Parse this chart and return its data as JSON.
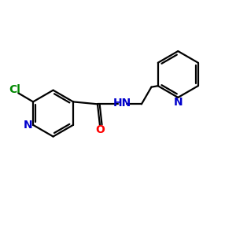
{
  "bg_color": "#ffffff",
  "bond_color": "#000000",
  "N_color": "#0000cc",
  "O_color": "#ff0000",
  "Cl_color": "#008800",
  "lw": 1.6,
  "figsize": [
    3.0,
    3.0
  ],
  "dpi": 100,
  "xlim": [
    0,
    10
  ],
  "ylim": [
    0,
    10
  ]
}
